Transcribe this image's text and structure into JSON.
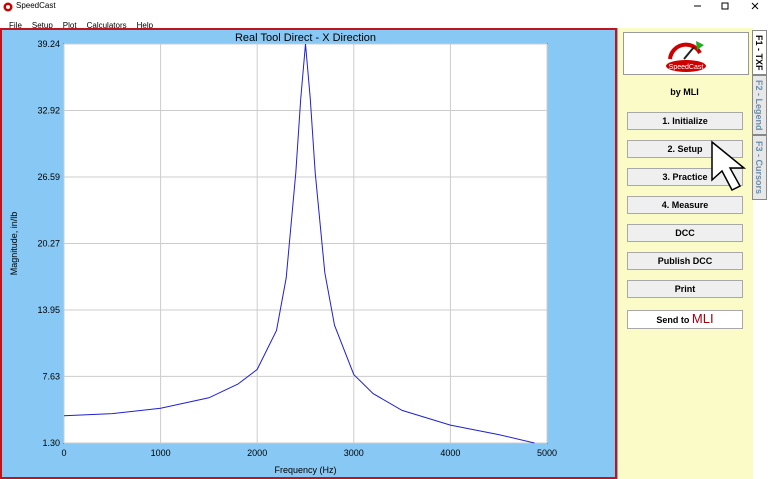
{
  "window": {
    "title": "SpeedCast"
  },
  "menu": [
    "File",
    "Setup",
    "Plot",
    "Calculators",
    "Help"
  ],
  "chart_data": {
    "type": "line",
    "title": "Real Tool Direct - X Direction",
    "x_label": "Frequency (Hz)",
    "y_label": "Magnitude, in/lb",
    "x": [
      0,
      500,
      1000,
      1500,
      1800,
      2000,
      2200,
      2300,
      2400,
      2450,
      2500,
      2550,
      2600,
      2700,
      2800,
      3000,
      3200,
      3500,
      4000,
      4500,
      4870
    ],
    "values": [
      3.9,
      4.1,
      4.6,
      5.6,
      6.9,
      8.3,
      12,
      17,
      27,
      34,
      39.24,
      34,
      27,
      17.5,
      12.5,
      7.8,
      6.0,
      4.4,
      3.0,
      2.1,
      1.3
    ],
    "color": "#2020d0",
    "xlim": [
      0,
      5000
    ],
    "xticks": [
      0,
      1000,
      2000,
      3000,
      4000,
      5000
    ],
    "ylim": [
      1.3,
      39.24
    ],
    "yticks": [
      {
        "value": 1.3,
        "label": "1.30"
      },
      7.63,
      13.95,
      20.27,
      26.59,
      32.92,
      39.24
    ],
    "grid": true
  },
  "sidebar": {
    "logo": "SpeedCast",
    "by": "by MLI",
    "buttons": [
      "1. Initialize",
      "2. Setup",
      "3. Practice",
      "4. Measure",
      "DCC",
      "Publish DCC",
      "Print"
    ],
    "send": {
      "text": "Send to",
      "brand": "MLI"
    }
  },
  "tabs": [
    "F1 - TXF",
    "F2 - Legend",
    "F3 - Cursors"
  ]
}
